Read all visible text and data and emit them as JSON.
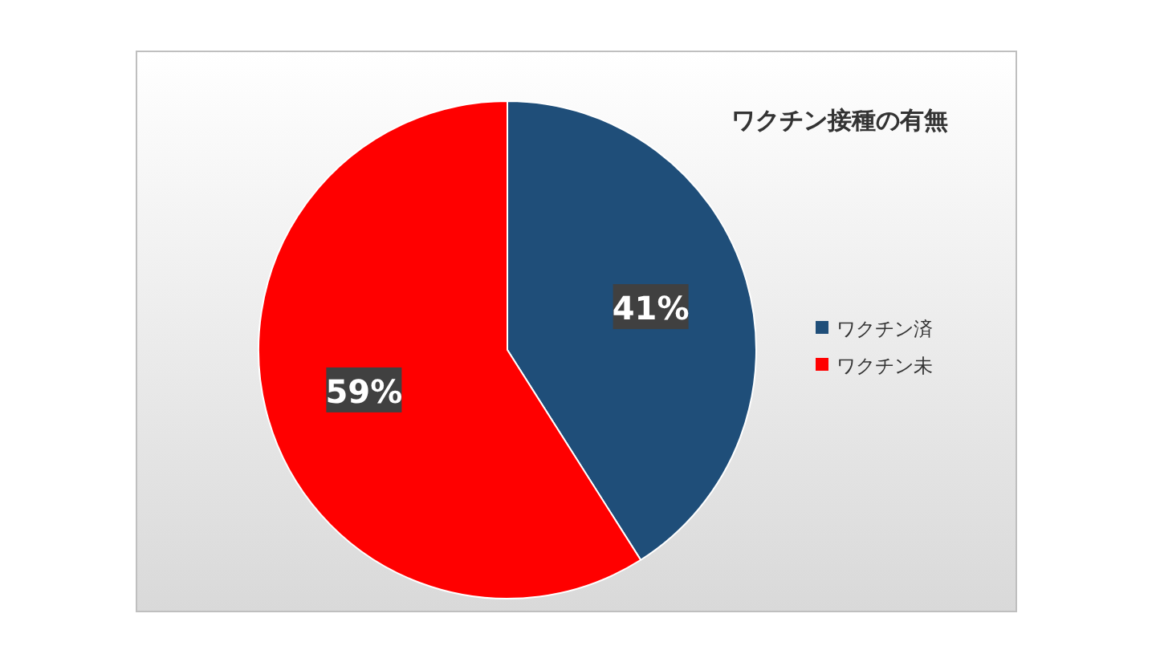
{
  "chart_data": {
    "type": "pie",
    "title": "ワクチン接種の有無",
    "categories": [
      "ワクチン済",
      "ワクチン未"
    ],
    "values": [
      41,
      59
    ],
    "colors": [
      "#1f4e79",
      "#ff0000"
    ],
    "value_labels": [
      "41%",
      "59%"
    ],
    "legend": "right"
  }
}
